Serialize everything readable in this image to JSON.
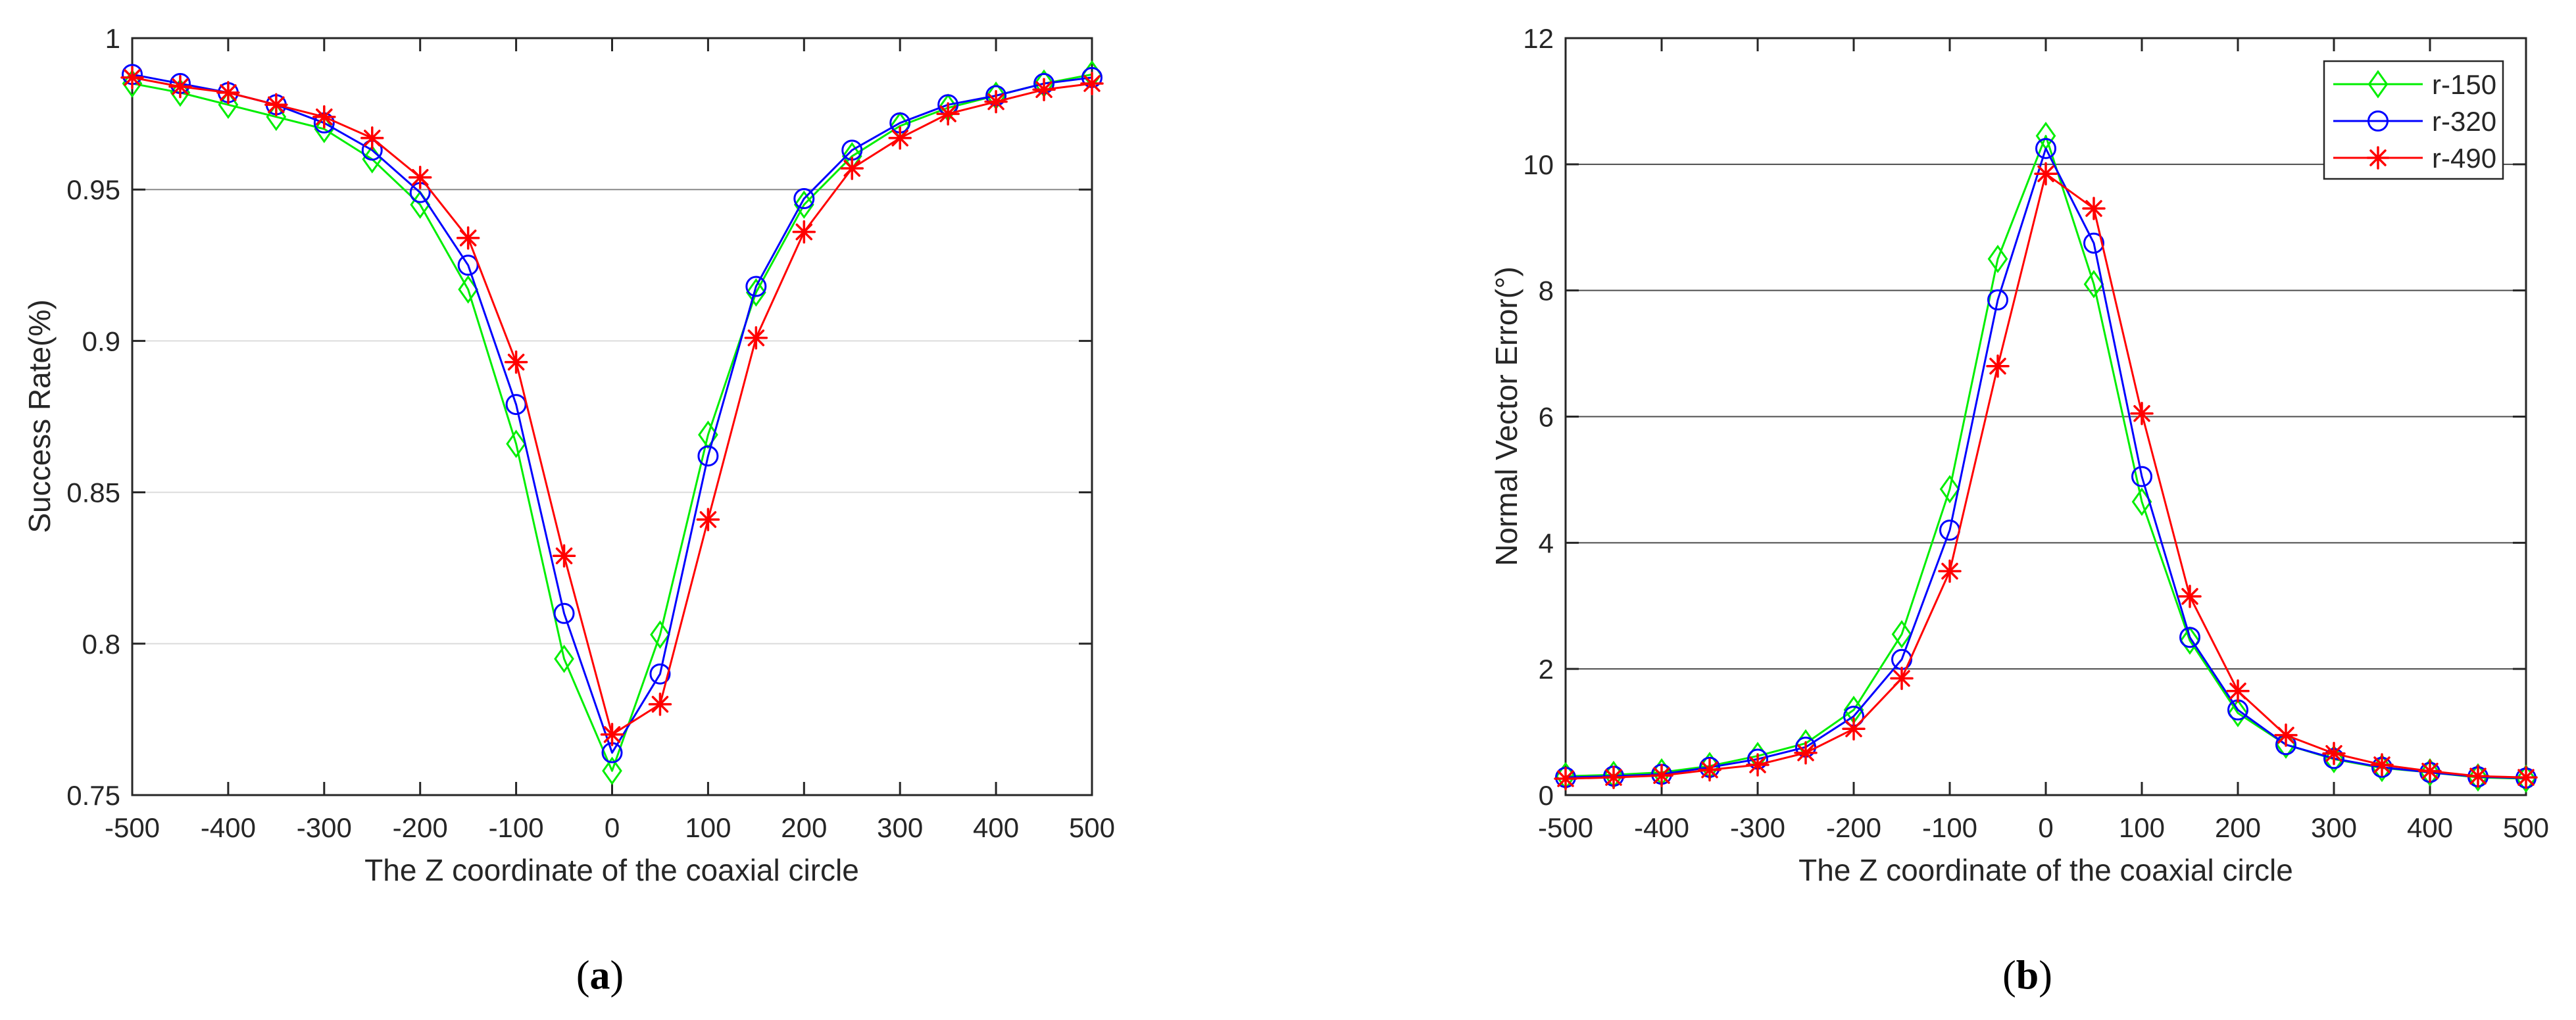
{
  "figure": {
    "background": "#ffffff",
    "axis_color": "#262626",
    "panels": [
      {
        "caption_open": "(",
        "caption_letter": "a",
        "caption_close": ")",
        "xlabel": "The Z coordinate of the coaxial circle",
        "ylabel": "Success Rate(%)"
      },
      {
        "caption_open": "(",
        "caption_letter": "b",
        "caption_close": ")",
        "xlabel": "The Z coordinate of the coaxial circle",
        "ylabel": "Normal Vector Error(°)"
      }
    ]
  },
  "chart_data": [
    {
      "type": "line",
      "title": "",
      "xlabel": "The Z coordinate of the coaxial circle",
      "ylabel": "Success Rate(%)",
      "xlim": [
        -500,
        500
      ],
      "ylim": [
        0.75,
        1
      ],
      "xticks": [
        -500,
        -400,
        -300,
        -200,
        -100,
        0,
        100,
        200,
        300,
        400,
        500
      ],
      "xtick_labels": [
        "-500",
        "-400",
        "-300",
        "-200",
        "-100",
        "0",
        "100",
        "200",
        "300",
        "400",
        "500"
      ],
      "yticks": [
        0.75,
        0.8,
        0.85,
        0.9,
        0.95,
        1
      ],
      "ytick_labels": [
        "0.75",
        "0.8",
        "0.85",
        "0.9",
        "0.95",
        "1"
      ],
      "grid_light": [
        0.8,
        0.85,
        0.9
      ],
      "grid_light_color": "#dcdcdc",
      "grid_dark": [
        0.95
      ],
      "grid_dark_color": "#8a8a8a",
      "legend": {
        "show": false,
        "position": "top-right"
      },
      "x": [
        -500,
        -450,
        -400,
        -350,
        -300,
        -250,
        -200,
        -150,
        -100,
        -50,
        0,
        50,
        100,
        150,
        200,
        250,
        300,
        350,
        400,
        450,
        500
      ],
      "series": [
        {
          "name": "r-150",
          "color": "#00cc00",
          "line_color": "#00ee00",
          "marker": "diamond",
          "values": [
            0.985,
            0.982,
            0.978,
            0.974,
            0.97,
            0.96,
            0.945,
            0.917,
            0.866,
            0.795,
            0.758,
            0.803,
            0.869,
            0.916,
            0.945,
            0.961,
            0.971,
            0.977,
            0.981,
            0.985,
            0.988
          ]
        },
        {
          "name": "r-320",
          "color": "#0000ff",
          "line_color": "#0000ff",
          "marker": "circle",
          "values": [
            0.988,
            0.985,
            0.982,
            0.978,
            0.972,
            0.963,
            0.949,
            0.925,
            0.879,
            0.81,
            0.764,
            0.79,
            0.862,
            0.918,
            0.947,
            0.963,
            0.972,
            0.978,
            0.981,
            0.985,
            0.987
          ]
        },
        {
          "name": "r-490",
          "color": "#ff0000",
          "line_color": "#ff0000",
          "marker": "asterisk",
          "values": [
            0.987,
            0.984,
            0.982,
            0.978,
            0.974,
            0.967,
            0.954,
            0.934,
            0.893,
            0.829,
            0.77,
            0.78,
            0.841,
            0.901,
            0.936,
            0.957,
            0.967,
            0.975,
            0.979,
            0.983,
            0.985
          ]
        }
      ]
    },
    {
      "type": "line",
      "title": "",
      "xlabel": "The Z coordinate of the coaxial circle",
      "ylabel": "Normal Vector Error(°)",
      "xlim": [
        -500,
        500
      ],
      "ylim": [
        0,
        12
      ],
      "xticks": [
        -500,
        -400,
        -300,
        -200,
        -100,
        0,
        100,
        200,
        300,
        400,
        500
      ],
      "xtick_labels": [
        "-500",
        "-400",
        "-300",
        "-200",
        "-100",
        "0",
        "100",
        "200",
        "300",
        "400",
        "500"
      ],
      "yticks": [
        0,
        2,
        4,
        6,
        8,
        10,
        12
      ],
      "ytick_labels": [
        "0",
        "2",
        "4",
        "6",
        "8",
        "10",
        "12"
      ],
      "grid_light": [],
      "grid_light_color": "#dcdcdc",
      "grid_dark": [
        2,
        4,
        6,
        8,
        10
      ],
      "grid_dark_color": "#4d4d4d",
      "legend": {
        "show": true,
        "position": "top-right",
        "entries": [
          "r-150",
          "r-320",
          "r-490"
        ]
      },
      "x": [
        -500,
        -450,
        -400,
        -350,
        -300,
        -250,
        -200,
        -150,
        -100,
        -50,
        0,
        50,
        100,
        150,
        200,
        250,
        300,
        350,
        400,
        450,
        500
      ],
      "series": [
        {
          "name": "r-150",
          "color": "#00cc00",
          "line_color": "#00ee00",
          "marker": "diamond",
          "values": [
            0.3,
            0.32,
            0.36,
            0.46,
            0.62,
            0.82,
            1.35,
            2.55,
            4.85,
            8.5,
            10.45,
            8.1,
            4.65,
            2.45,
            1.3,
            0.8,
            0.57,
            0.43,
            0.36,
            0.28,
            0.26
          ]
        },
        {
          "name": "r-320",
          "color": "#0000ff",
          "line_color": "#0000ff",
          "marker": "circle",
          "values": [
            0.28,
            0.3,
            0.33,
            0.44,
            0.57,
            0.76,
            1.25,
            2.15,
            4.2,
            7.85,
            10.25,
            8.75,
            5.05,
            2.5,
            1.35,
            0.8,
            0.58,
            0.44,
            0.36,
            0.29,
            0.27
          ]
        },
        {
          "name": "r-490",
          "color": "#ff0000",
          "line_color": "#ff0000",
          "marker": "asterisk",
          "values": [
            0.26,
            0.28,
            0.31,
            0.4,
            0.48,
            0.67,
            1.05,
            1.85,
            3.55,
            6.8,
            9.85,
            9.3,
            6.05,
            3.15,
            1.65,
            0.95,
            0.66,
            0.48,
            0.38,
            0.3,
            0.28
          ]
        }
      ]
    }
  ]
}
